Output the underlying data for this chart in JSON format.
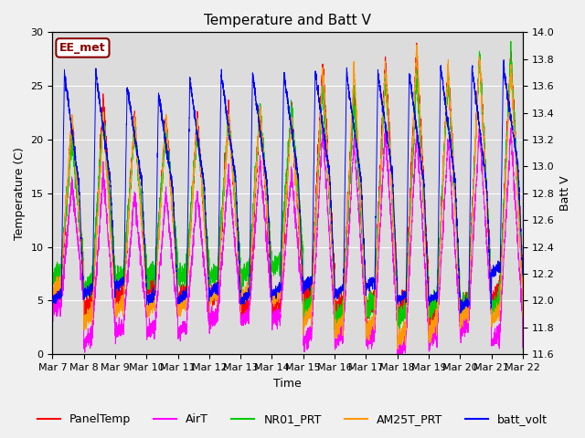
{
  "title": "Temperature and Batt V",
  "xlabel": "Time",
  "ylabel_left": "Temperature (C)",
  "ylabel_right": "Batt V",
  "annotation": "EE_met",
  "ylim_left": [
    0,
    30
  ],
  "ylim_right": [
    11.6,
    14.0
  ],
  "xtick_labels": [
    "Mar 7",
    "Mar 8",
    "Mar 9",
    "Mar 10",
    "Mar 11",
    "Mar 12",
    "Mar 13",
    "Mar 14",
    "Mar 15",
    "Mar 16",
    "Mar 17",
    "Mar 18",
    "Mar 19",
    "Mar 20",
    "Mar 21",
    "Mar 22"
  ],
  "colors": {
    "PanelTemp": "#ff0000",
    "AirT": "#ff00ff",
    "NR01_PRT": "#00cc00",
    "AM25T_PRT": "#ff9900",
    "batt_volt": "#0000ff"
  },
  "background_color": "#dcdcdc",
  "fig_background": "#f0f0f0",
  "title_fontsize": 11,
  "axis_fontsize": 9,
  "tick_fontsize": 8,
  "legend_fontsize": 9,
  "n_days": 15,
  "pts_per_day": 288
}
